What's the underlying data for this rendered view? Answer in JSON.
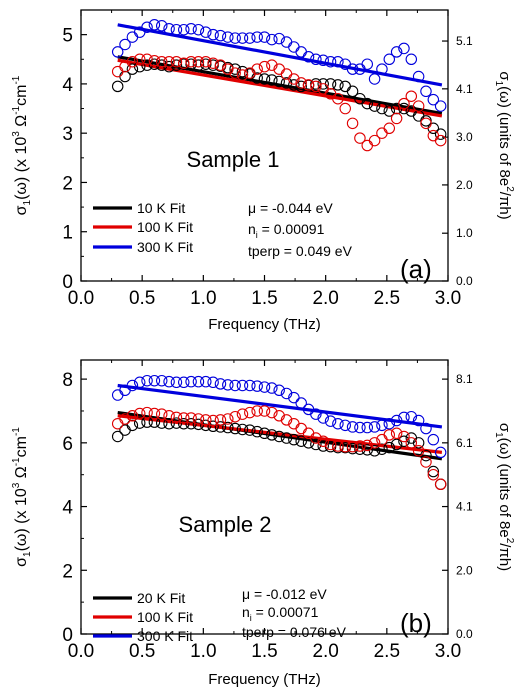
{
  "chart_data": [
    {
      "type": "scatter",
      "panel_label": "(a)",
      "sample_label": "Sample 1",
      "xlabel": "Frequency (THz)",
      "ylabel": {
        "pre": "σ",
        "sub": "1",
        "mid": "(ω) (x 10",
        "sup": "3",
        "post": " Ω",
        "sup2": "-1",
        "post2": "cm",
        "sup3": "-1"
      },
      "ylabel_right": {
        "pre": "σ",
        "sub": "1",
        "mid": "(ω) (units of 8e",
        "sup": "2",
        "post": "/πh)"
      },
      "xlim": [
        0.0,
        3.0
      ],
      "ylim": [
        0,
        5.5
      ],
      "xticks": [
        "0.0",
        "0.5",
        "1.0",
        "1.5",
        "2.0",
        "2.5",
        "3.0"
      ],
      "yticks": [
        "0",
        "1",
        "2",
        "3",
        "4",
        "5"
      ],
      "yticks_right": [
        {
          "label": "0.0",
          "y": 0
        },
        {
          "label": "1.0",
          "y": 0.97
        },
        {
          "label": "2.0",
          "y": 1.95
        },
        {
          "label": "3.0",
          "y": 2.92
        },
        {
          "label": "4.1",
          "y": 3.9
        },
        {
          "label": "5.1",
          "y": 4.87
        }
      ],
      "annotations": {
        "mu": "μ = -0.044 eV",
        "ni_pre": "n",
        "ni_sub": "i",
        "ni_post": " = 0.00091",
        "tperp": "tperp = 0.049 eV"
      },
      "legend_position": "lower-left",
      "series": [
        {
          "name": "10 K Fit",
          "color": "#000000",
          "fit": [
            [
              0.3,
              4.55
            ],
            [
              2.95,
              3.4
            ]
          ],
          "x": [
            0.3,
            0.36,
            0.42,
            0.48,
            0.54,
            0.6,
            0.66,
            0.72,
            0.78,
            0.84,
            0.9,
            0.96,
            1.02,
            1.08,
            1.14,
            1.2,
            1.26,
            1.32,
            1.38,
            1.44,
            1.5,
            1.56,
            1.62,
            1.68,
            1.74,
            1.8,
            1.86,
            1.92,
            1.98,
            2.04,
            2.1,
            2.16,
            2.22,
            2.28,
            2.34,
            2.4,
            2.46,
            2.52,
            2.58,
            2.64,
            2.7,
            2.76,
            2.82,
            2.88,
            2.94
          ],
          "y": [
            3.95,
            4.15,
            4.3,
            4.35,
            4.38,
            4.4,
            4.38,
            4.35,
            4.38,
            4.4,
            4.4,
            4.38,
            4.4,
            4.38,
            4.36,
            4.33,
            4.3,
            4.25,
            4.2,
            4.12,
            4.1,
            4.08,
            4.05,
            4.02,
            3.98,
            3.95,
            3.97,
            4.0,
            4.0,
            4.0,
            3.98,
            3.95,
            3.85,
            3.7,
            3.6,
            3.55,
            3.5,
            3.45,
            3.5,
            3.5,
            3.45,
            3.35,
            3.25,
            3.1,
            2.98
          ]
        },
        {
          "name": "100 K Fit",
          "color": "#e00000",
          "fit": [
            [
              0.3,
              4.48
            ],
            [
              2.95,
              3.35
            ]
          ],
          "x": [
            0.3,
            0.36,
            0.42,
            0.48,
            0.54,
            0.6,
            0.66,
            0.72,
            0.78,
            0.84,
            0.9,
            0.96,
            1.02,
            1.08,
            1.14,
            1.2,
            1.26,
            1.32,
            1.38,
            1.44,
            1.5,
            1.56,
            1.62,
            1.68,
            1.74,
            1.8,
            1.86,
            1.92,
            1.98,
            2.04,
            2.1,
            2.16,
            2.22,
            2.28,
            2.34,
            2.4,
            2.46,
            2.52,
            2.58,
            2.64,
            2.7,
            2.76,
            2.82,
            2.88,
            2.94
          ],
          "y": [
            4.25,
            4.35,
            4.45,
            4.5,
            4.5,
            4.47,
            4.45,
            4.45,
            4.45,
            4.42,
            4.45,
            4.45,
            4.45,
            4.42,
            4.38,
            4.3,
            4.22,
            4.18,
            4.22,
            4.3,
            4.35,
            4.38,
            4.3,
            4.2,
            4.1,
            4.02,
            3.98,
            3.95,
            3.9,
            3.8,
            3.7,
            3.5,
            3.2,
            2.9,
            2.75,
            2.85,
            3.0,
            3.1,
            3.3,
            3.6,
            3.75,
            3.55,
            3.2,
            2.95,
            2.85
          ]
        },
        {
          "name": "300 K Fit",
          "color": "#0000dd",
          "fit": [
            [
              0.3,
              5.2
            ],
            [
              2.95,
              3.98
            ]
          ],
          "x": [
            0.3,
            0.36,
            0.42,
            0.48,
            0.54,
            0.6,
            0.66,
            0.72,
            0.78,
            0.84,
            0.9,
            0.96,
            1.02,
            1.08,
            1.14,
            1.2,
            1.26,
            1.32,
            1.38,
            1.44,
            1.5,
            1.56,
            1.62,
            1.68,
            1.74,
            1.8,
            1.86,
            1.92,
            1.98,
            2.04,
            2.1,
            2.16,
            2.22,
            2.28,
            2.34,
            2.4,
            2.46,
            2.52,
            2.58,
            2.64,
            2.7,
            2.76,
            2.82,
            2.88,
            2.94
          ],
          "y": [
            4.65,
            4.8,
            4.95,
            5.05,
            5.15,
            5.2,
            5.18,
            5.12,
            5.1,
            5.1,
            5.12,
            5.1,
            5.05,
            5.0,
            4.98,
            4.95,
            4.93,
            4.93,
            4.93,
            4.95,
            4.95,
            4.9,
            4.92,
            4.85,
            4.75,
            4.65,
            4.55,
            4.5,
            4.48,
            4.45,
            4.45,
            4.4,
            4.3,
            4.3,
            4.4,
            4.1,
            4.3,
            4.5,
            4.65,
            4.72,
            4.5,
            4.15,
            3.85,
            3.68,
            3.55
          ]
        }
      ]
    },
    {
      "type": "scatter",
      "panel_label": "(b)",
      "sample_label": "Sample 2",
      "xlabel": "Frequency (THz)",
      "ylabel": {
        "pre": "σ",
        "sub": "1",
        "mid": "(ω) (x 10",
        "sup": "3",
        "post": " Ω",
        "sup2": "-1",
        "post2": "cm",
        "sup3": "-1"
      },
      "ylabel_right": {
        "pre": "σ",
        "sub": "1",
        "mid": "(ω) (units of 8e",
        "sup": "2",
        "post": "/πh)"
      },
      "xlim": [
        0.0,
        3.0
      ],
      "ylim": [
        0,
        8.6
      ],
      "xticks": [
        "0.0",
        "0.5",
        "1.0",
        "1.5",
        "2.0",
        "2.5",
        "3.0"
      ],
      "yticks": [
        "0",
        "2",
        "4",
        "6",
        "8"
      ],
      "yticks_right": [
        {
          "label": "0.0",
          "y": 0
        },
        {
          "label": "2.0",
          "y": 2.0
        },
        {
          "label": "4.1",
          "y": 4.0
        },
        {
          "label": "6.1",
          "y": 6.0
        },
        {
          "label": "8.1",
          "y": 8.0
        }
      ],
      "annotations": {
        "mu": "μ = -0.012 eV",
        "ni_pre": "n",
        "ni_sub": "i",
        "ni_post": " = 0.00071",
        "tperp": "tperp = 0.076 eV"
      },
      "legend_position": "lower-left",
      "series": [
        {
          "name": "20 K Fit",
          "color": "#000000",
          "fit": [
            [
              0.3,
              6.95
            ],
            [
              2.95,
              5.5
            ]
          ],
          "x": [
            0.3,
            0.36,
            0.42,
            0.48,
            0.54,
            0.6,
            0.66,
            0.72,
            0.78,
            0.84,
            0.9,
            0.96,
            1.02,
            1.08,
            1.14,
            1.2,
            1.26,
            1.32,
            1.38,
            1.44,
            1.5,
            1.56,
            1.62,
            1.68,
            1.74,
            1.8,
            1.86,
            1.92,
            1.98,
            2.04,
            2.1,
            2.16,
            2.22,
            2.28,
            2.34,
            2.4,
            2.46,
            2.52,
            2.58,
            2.64,
            2.7,
            2.76,
            2.82,
            2.88,
            2.94
          ],
          "y": [
            6.2,
            6.4,
            6.55,
            6.62,
            6.65,
            6.65,
            6.62,
            6.6,
            6.62,
            6.6,
            6.6,
            6.58,
            6.55,
            6.52,
            6.5,
            6.48,
            6.45,
            6.42,
            6.4,
            6.35,
            6.3,
            6.25,
            6.2,
            6.15,
            6.1,
            6.05,
            6.0,
            5.95,
            5.9,
            5.88,
            5.85,
            5.85,
            5.82,
            5.8,
            5.78,
            5.75,
            5.8,
            5.85,
            5.95,
            6.05,
            6.15,
            6.0,
            5.6,
            5.1,
            4.7
          ]
        },
        {
          "name": "100 K Fit",
          "color": "#e00000",
          "fit": [
            [
              0.3,
              6.85
            ],
            [
              2.95,
              5.7
            ]
          ],
          "x": [
            0.3,
            0.36,
            0.42,
            0.48,
            0.54,
            0.6,
            0.66,
            0.72,
            0.78,
            0.84,
            0.9,
            0.96,
            1.02,
            1.08,
            1.14,
            1.2,
            1.26,
            1.32,
            1.38,
            1.44,
            1.5,
            1.56,
            1.62,
            1.68,
            1.74,
            1.8,
            1.86,
            1.92,
            1.98,
            2.04,
            2.1,
            2.16,
            2.22,
            2.28,
            2.34,
            2.4,
            2.46,
            2.52,
            2.58,
            2.64,
            2.7,
            2.76,
            2.82,
            2.88,
            2.94
          ],
          "y": [
            6.6,
            6.75,
            6.85,
            6.92,
            6.95,
            6.92,
            6.9,
            6.85,
            6.8,
            6.78,
            6.78,
            6.75,
            6.72,
            6.7,
            6.72,
            6.75,
            6.82,
            6.9,
            6.95,
            7.0,
            7.0,
            6.95,
            6.85,
            6.72,
            6.6,
            6.45,
            6.3,
            6.15,
            6.05,
            5.95,
            5.9,
            5.88,
            5.88,
            5.9,
            5.92,
            6.0,
            6.1,
            6.25,
            6.3,
            6.2,
            6.0,
            5.75,
            5.4,
            5.0,
            4.7
          ]
        },
        {
          "name": "300 K Fit",
          "color": "#0000dd",
          "fit": [
            [
              0.3,
              7.8
            ],
            [
              2.95,
              6.5
            ]
          ],
          "x": [
            0.3,
            0.36,
            0.42,
            0.48,
            0.54,
            0.6,
            0.66,
            0.72,
            0.78,
            0.84,
            0.9,
            0.96,
            1.02,
            1.08,
            1.14,
            1.2,
            1.26,
            1.32,
            1.38,
            1.44,
            1.5,
            1.56,
            1.62,
            1.68,
            1.74,
            1.8,
            1.86,
            1.92,
            1.98,
            2.04,
            2.1,
            2.16,
            2.22,
            2.28,
            2.34,
            2.4,
            2.46,
            2.52,
            2.58,
            2.64,
            2.7,
            2.76,
            2.82,
            2.88,
            2.94
          ],
          "y": [
            7.5,
            7.65,
            7.8,
            7.9,
            7.95,
            7.95,
            7.95,
            7.92,
            7.9,
            7.9,
            7.92,
            7.92,
            7.92,
            7.9,
            7.85,
            7.82,
            7.8,
            7.8,
            7.8,
            7.78,
            7.75,
            7.72,
            7.65,
            7.55,
            7.42,
            7.25,
            7.05,
            6.9,
            6.78,
            6.68,
            6.6,
            6.55,
            6.5,
            6.48,
            6.48,
            6.5,
            6.55,
            6.6,
            6.7,
            6.8,
            6.82,
            6.7,
            6.45,
            6.1,
            5.7
          ]
        }
      ]
    }
  ]
}
